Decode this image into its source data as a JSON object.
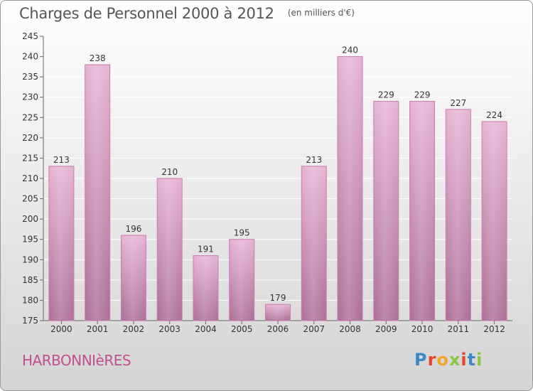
{
  "colors": {
    "bar_fill": "#d9a2c6",
    "bar_stroke": "#c97fae",
    "commune": "#c0508e",
    "logo": [
      "#3c87c8",
      "#e64330",
      "#f0a82a",
      "#8cc63f",
      "#e64330",
      "#3c87c8",
      "#8cc63f"
    ]
  },
  "chart_data": {
    "type": "bar",
    "title": "Charges de Personnel 2000 à 2012",
    "subtitle": "(en milliers d'€)",
    "categories": [
      "2000",
      "2001",
      "2002",
      "2003",
      "2004",
      "2005",
      "2006",
      "2007",
      "2008",
      "2009",
      "2010",
      "2011",
      "2012"
    ],
    "values": [
      213,
      238,
      196,
      210,
      191,
      195,
      179,
      213,
      240,
      229,
      229,
      227,
      224
    ],
    "ylim": [
      175,
      245
    ],
    "yticks": [
      175,
      180,
      185,
      190,
      195,
      200,
      205,
      210,
      215,
      220,
      225,
      230,
      235,
      240,
      245
    ],
    "grid": true,
    "legend": "none"
  },
  "footer": {
    "commune": "HARBONNIèRES",
    "logo_text": "Proxiti"
  }
}
